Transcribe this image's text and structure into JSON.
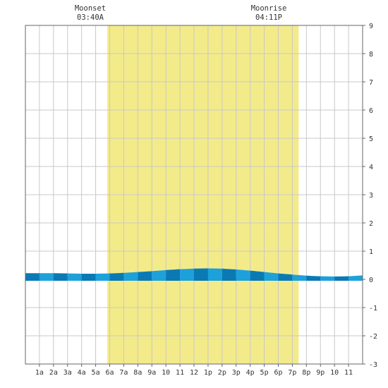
{
  "chart_data": {
    "type": "area",
    "x_tick_labels": [
      "1a",
      "2a",
      "3a",
      "4a",
      "5a",
      "6a",
      "7a",
      "8a",
      "9a",
      "10",
      "11",
      "12",
      "1p",
      "2p",
      "3p",
      "4p",
      "5p",
      "6p",
      "7p",
      "8p",
      "9p",
      "10",
      "11"
    ],
    "y_tick_labels": [
      "9",
      "8",
      "7",
      "6",
      "5",
      "4",
      "3",
      "2",
      "1",
      "0",
      "-1",
      "-2",
      "-3"
    ],
    "xlim": [
      0,
      24
    ],
    "ylim": [
      -3,
      9
    ],
    "grid": true,
    "daylight": {
      "start_hour": 5.83,
      "end_hour": 19.45,
      "color": "#f3eb8a"
    },
    "moonset": {
      "label": "Moonset",
      "time": "03:40A",
      "hour": 3.67
    },
    "moonrise": {
      "label": "Moonrise",
      "time": "04:11P",
      "hour": 16.18
    },
    "series": [
      {
        "x": [
          0,
          1,
          2,
          3,
          4,
          5,
          6,
          7,
          8,
          9,
          10,
          11,
          12,
          13,
          14,
          15,
          16,
          17,
          18,
          19,
          20,
          21,
          22,
          23,
          24
        ],
        "values": [
          0.22,
          0.22,
          0.22,
          0.21,
          0.2,
          0.2,
          0.21,
          0.23,
          0.26,
          0.29,
          0.33,
          0.36,
          0.38,
          0.39,
          0.38,
          0.35,
          0.31,
          0.26,
          0.21,
          0.17,
          0.13,
          0.11,
          0.1,
          0.11,
          0.14
        ]
      }
    ],
    "colors": {
      "dark": "#0a7ab5",
      "light": "#1da1db",
      "grid": "#c8c8c8",
      "frame": "#666666"
    }
  }
}
